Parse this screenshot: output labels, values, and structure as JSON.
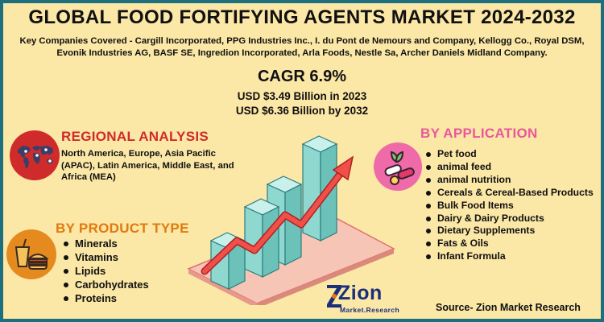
{
  "header": {
    "title": "GLOBAL FOOD FORTIFYING AGENTS MARKET 2024-2032",
    "key_companies": "Key Companies Covered - Cargill Incorporated, PPG Industries Inc., I. du Pont de Nemours and Company, Kellogg Co., Royal DSM, Evonik Industries AG, BASF SE, Ingredion Incorporated, Arla Foods, Nestle Sa, Archer Daniels Midland Company."
  },
  "metrics": {
    "cagr": "CAGR 6.9%",
    "value_2023": "USD $3.49 Billion  in 2023",
    "value_2032": "USD $6.36 Billion  by 2032"
  },
  "regional": {
    "heading": "REGIONAL ANALYSIS",
    "text": "North America, Europe, Asia Pacific (APAC), Latin America, Middle East, and Africa (MEA)"
  },
  "product_type": {
    "heading": "BY PRODUCT TYPE",
    "items": [
      "Minerals",
      "Vitamins",
      "Lipids",
      "Carbohydrates",
      "Proteins"
    ]
  },
  "application": {
    "heading": "BY APPLICATION",
    "items": [
      "Pet food",
      "animal feed",
      "animal nutrition",
      "Cereals & Cereal-Based Products",
      "Bulk Food Items",
      "Dairy & Dairy Products",
      "Dietary Supplements",
      "Fats & Oils",
      "Infant Formula"
    ]
  },
  "branding": {
    "logo_main": "Zion",
    "logo_sub": "Market.Research",
    "source": "Source- Zion Market Research"
  },
  "icons": {
    "region": "world-map-icon",
    "product": "fast-food-icon",
    "application": "pills-leaf-icon",
    "chart": "growth-chart-illustration"
  },
  "colors": {
    "background": "#fbe7a6",
    "border": "#1d6f7d",
    "regional": "#cf2b2b",
    "product": "#e07a10",
    "application": "#e8589b",
    "bars": "#8fd8cf",
    "arrow": "#e03a3a"
  }
}
